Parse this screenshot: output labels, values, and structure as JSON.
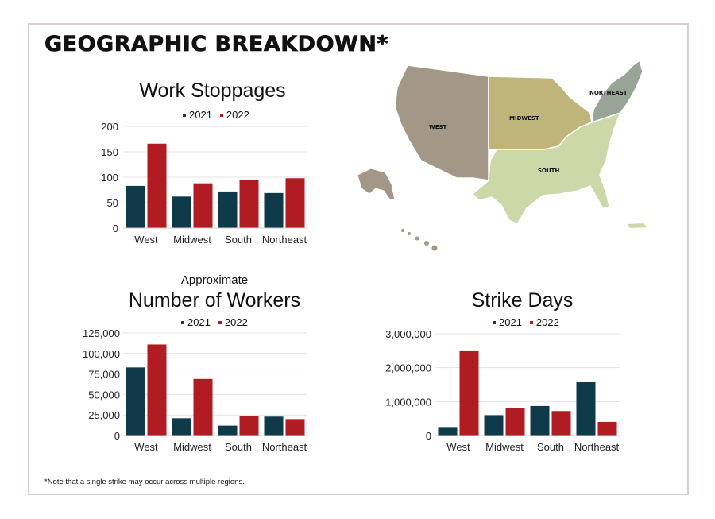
{
  "title": "GEOGRAPHIC BREAKDOWN*",
  "footnote": "*Note that a single strike may occur across multiple regions.",
  "colors": {
    "2021": "#0e3a4a",
    "2022": "#b01c21",
    "west": "#a39887",
    "midwest": "#bfb57a",
    "northeast": "#97a496",
    "south": "#ccd8a8"
  },
  "map": {
    "labels": {
      "west": "WEST",
      "midwest": "MIDWEST",
      "northeast": "NORTHEAST",
      "south": "SOUTH"
    }
  },
  "chart_data": [
    {
      "id": "stoppages",
      "type": "bar",
      "title": "Work Stoppages",
      "subtitle": "",
      "categories": [
        "West",
        "Midwest",
        "South",
        "Northeast"
      ],
      "series": [
        {
          "name": "2021",
          "values": [
            83,
            62,
            72,
            69
          ]
        },
        {
          "name": "2022",
          "values": [
            166,
            88,
            94,
            98
          ]
        }
      ],
      "ylim": [
        0,
        200
      ],
      "yticks": [
        0,
        50,
        100,
        150,
        200
      ],
      "ytick_labels": [
        "0",
        "50",
        "100",
        "150",
        "200"
      ],
      "grid": true,
      "legend": "top"
    },
    {
      "id": "workers",
      "type": "bar",
      "title": "Number of Workers",
      "subtitle": "Approximate",
      "categories": [
        "West",
        "Midwest",
        "South",
        "Northeast"
      ],
      "series": [
        {
          "name": "2021",
          "values": [
            83000,
            21000,
            12000,
            23000
          ]
        },
        {
          "name": "2022",
          "values": [
            111000,
            69000,
            24000,
            20000
          ]
        }
      ],
      "ylim": [
        0,
        125000
      ],
      "yticks": [
        0,
        25000,
        50000,
        75000,
        100000,
        125000
      ],
      "ytick_labels": [
        "0",
        "25,000",
        "50,000",
        "75,000",
        "100,000",
        "125,000"
      ],
      "grid": true,
      "legend": "top"
    },
    {
      "id": "strikedays",
      "type": "bar",
      "title": "Strike Days",
      "subtitle": "",
      "categories": [
        "West",
        "Midwest",
        "South",
        "Northeast"
      ],
      "series": [
        {
          "name": "2021",
          "values": [
            250000,
            600000,
            870000,
            1570000
          ]
        },
        {
          "name": "2022",
          "values": [
            2510000,
            820000,
            720000,
            400000
          ]
        }
      ],
      "ylim": [
        0,
        3000000
      ],
      "yticks": [
        0,
        1000000,
        2000000,
        3000000
      ],
      "ytick_labels": [
        "0",
        "1,000,000",
        "2,000,000",
        "3,000,000"
      ],
      "grid": true,
      "legend": "top"
    }
  ]
}
